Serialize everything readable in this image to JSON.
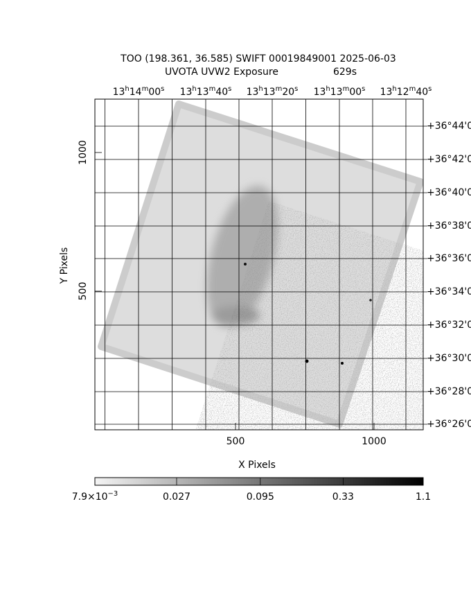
{
  "title": "TOO (198.361, 36.585) SWIFT 00019849001 2025-06-03",
  "subtitle": "UVOTA UVW2 Exposure",
  "exposure": "629s",
  "x_label": "X Pixels",
  "y_label": "Y Pixels",
  "xlim": [
    -7.5,
    1177.5
  ],
  "ylim": [
    0,
    1192.5
  ],
  "xticks": [
    500,
    1000
  ],
  "yticks": [
    500,
    1000
  ],
  "ra_ticks": [
    {
      "value": 150,
      "label": "13h14m00s"
    },
    {
      "value": 392.5,
      "label": "13h13m40s"
    },
    {
      "value": 632.5,
      "label": "13h13m20s"
    },
    {
      "value": 875,
      "label": "13h13m00s"
    },
    {
      "value": 1115,
      "label": "13h12m40s"
    }
  ],
  "dec_ticks": [
    {
      "value": 1095,
      "label": "+36°44'0"
    },
    {
      "value": 975,
      "label": "+36°42'0"
    },
    {
      "value": 855,
      "label": "+36°40'0"
    },
    {
      "value": 735,
      "label": "+36°38'0"
    },
    {
      "value": 617.5,
      "label": "+36°36'0"
    },
    {
      "value": 497.5,
      "label": "+36°34'0"
    },
    {
      "value": 377.5,
      "label": "+36°32'0"
    },
    {
      "value": 257.5,
      "label": "+36°30'0"
    },
    {
      "value": 137.5,
      "label": "+36°28'0"
    },
    {
      "value": 20,
      "label": "+36°26'0"
    }
  ],
  "colorbar": {
    "log": true,
    "lim": [
      0.0079,
      1.1
    ],
    "ticks": [
      {
        "value": 0.0079,
        "label": "7.9×10−3"
      },
      0.027,
      0.095,
      0.33,
      1.1
    ]
  }
}
